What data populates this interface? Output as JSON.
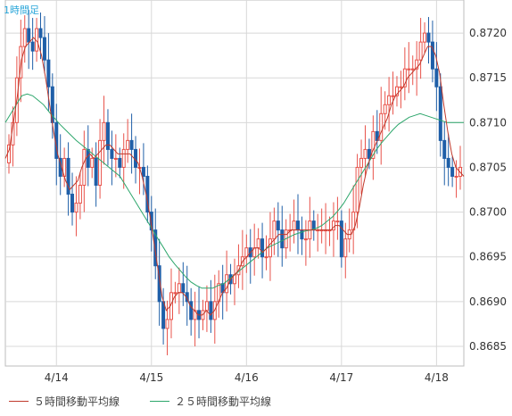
{
  "chart_data": {
    "type": "candlestick",
    "title": "1時間足",
    "x_tick_labels": [
      "4/14",
      "4/15",
      "4/16",
      "4/17",
      "4/18"
    ],
    "y_tick_labels": [
      "0.8685",
      "0.8690",
      "0.8695",
      "0.8700",
      "0.8705",
      "0.8710",
      "0.8715",
      "0.8720"
    ],
    "ylim": [
      0.86828,
      0.87237
    ],
    "grid": true,
    "legend_position": "bottom",
    "colors": {
      "up": "#e8524a",
      "down": "#1f5fa8",
      "ma5": "#c0392b",
      "ma25": "#2ca66b",
      "grid": "#d8d8d8",
      "axis_text": "#333333"
    },
    "series": [
      {
        "name": "OHLC",
        "x_start_index": 0,
        "candles_per_day": 24,
        "day_start_indices": {
          "4/14": 12,
          "4/15": 36,
          "4/16": 60,
          "4/17": 84,
          "4/18": 108
        },
        "closes": [
          0.87075,
          0.871,
          0.8715,
          0.87185,
          0.87205,
          0.8719,
          0.8718,
          0.87205,
          0.87195,
          0.8717,
          0.8714,
          0.871,
          0.8706,
          0.8704,
          0.8706,
          0.8702,
          0.87,
          0.8701,
          0.8703,
          0.8707,
          0.8705,
          0.8706,
          0.8703,
          0.8708,
          0.871,
          0.8707,
          0.8706,
          0.8706,
          0.8705,
          0.8707,
          0.8708,
          0.8707,
          0.8705,
          0.8705,
          0.8704,
          0.87,
          0.8698,
          0.8694,
          0.869,
          0.8687,
          0.8688,
          0.8691,
          0.8691,
          0.8692,
          0.8691,
          0.869,
          0.8688,
          0.8689,
          0.8688,
          0.8689,
          0.869,
          0.8688,
          0.869,
          0.8692,
          0.8691,
          0.8693,
          0.8692,
          0.8693,
          0.8694,
          0.8695,
          0.8696,
          0.8695,
          0.8696,
          0.8697,
          0.8695,
          0.8695,
          0.8697,
          0.8699,
          0.8698,
          0.8696,
          0.8698,
          0.8698,
          0.8699,
          0.8698,
          0.8697,
          0.8697,
          0.8699,
          0.8698,
          0.8698,
          0.8698,
          0.8698,
          0.8698,
          0.8699,
          0.8699,
          0.8695,
          0.8697,
          0.8698,
          0.87,
          0.8705,
          0.8706,
          0.8707,
          0.8706,
          0.8709,
          0.8708,
          0.8711,
          0.8712,
          0.8713,
          0.8713,
          0.8714,
          0.8714,
          0.8716,
          0.8716,
          0.8716,
          0.8717,
          0.8719,
          0.872,
          0.8719,
          0.8716,
          0.8714,
          0.8708,
          0.8706,
          0.8705,
          0.8704,
          0.8704,
          0.8705
        ],
        "ma5_values": [
          0.8706,
          0.8707,
          0.871,
          0.8713,
          0.8717,
          0.87185,
          0.8719,
          0.87195,
          0.8719,
          0.87175,
          0.8715,
          0.8712,
          0.8709,
          0.87065,
          0.8705,
          0.87035,
          0.87025,
          0.8703,
          0.87035,
          0.8705,
          0.8706,
          0.87065,
          0.8706,
          0.87065,
          0.8707,
          0.87075,
          0.87075,
          0.8707,
          0.87065,
          0.87065,
          0.87065,
          0.87065,
          0.8706,
          0.87055,
          0.8704,
          0.8702,
          0.86995,
          0.86965,
          0.86935,
          0.86905,
          0.8689,
          0.86895,
          0.86905,
          0.8691,
          0.8691,
          0.86905,
          0.86895,
          0.8689,
          0.86885,
          0.86885,
          0.8689,
          0.86885,
          0.8689,
          0.869,
          0.8691,
          0.86915,
          0.86925,
          0.8693,
          0.86935,
          0.86945,
          0.8695,
          0.86955,
          0.8696,
          0.8696,
          0.86955,
          0.8696,
          0.86965,
          0.8697,
          0.86975,
          0.86975,
          0.86975,
          0.8698,
          0.8698,
          0.8698,
          0.8698,
          0.8698,
          0.8698,
          0.8698,
          0.8698,
          0.8698,
          0.8698,
          0.8698,
          0.86985,
          0.86985,
          0.8698,
          0.86975,
          0.86975,
          0.86985,
          0.87005,
          0.8703,
          0.8705,
          0.87065,
          0.87075,
          0.87085,
          0.87095,
          0.87105,
          0.8712,
          0.8713,
          0.87135,
          0.8714,
          0.8715,
          0.87155,
          0.8716,
          0.87165,
          0.87175,
          0.87185,
          0.87185,
          0.87175,
          0.87155,
          0.8712,
          0.8709,
          0.87065,
          0.8705,
          0.87045,
          0.8704
        ],
        "ma25_values": [
          0.871,
          0.8711,
          0.8712,
          0.8713,
          0.87132,
          0.8713,
          0.87125,
          0.8712,
          0.87112,
          0.87105,
          0.87098,
          0.87092,
          0.87086,
          0.8708,
          0.87075,
          0.8707,
          0.87065,
          0.8706,
          0.87055,
          0.8705,
          0.87045,
          0.8704,
          0.8703,
          0.8702,
          0.8701,
          0.87,
          0.8699,
          0.8698,
          0.8697,
          0.8696,
          0.8695,
          0.86942,
          0.86935,
          0.86928,
          0.86922,
          0.86918,
          0.86915,
          0.86915,
          0.86915,
          0.86918,
          0.8692,
          0.86925,
          0.8693,
          0.86935,
          0.8694,
          0.86945,
          0.8695,
          0.86955,
          0.8696,
          0.86963,
          0.86966,
          0.86969,
          0.86972,
          0.86975,
          0.86977,
          0.86979,
          0.8698,
          0.86982,
          0.86985,
          0.8699,
          0.86995,
          0.87002,
          0.8701,
          0.8702,
          0.8703,
          0.8704,
          0.8705,
          0.8706,
          0.8707,
          0.87078,
          0.87085,
          0.87092,
          0.87098,
          0.87102,
          0.87106,
          0.87108,
          0.8711,
          0.87108,
          0.87106,
          0.87104,
          0.87102,
          0.871,
          0.871,
          0.871,
          0.871
        ]
      }
    ],
    "legend": [
      {
        "label": "５時間移動平均線",
        "color": "#c0392b"
      },
      {
        "label": "２５時間移動平均線",
        "color": "#2ca66b"
      }
    ]
  }
}
